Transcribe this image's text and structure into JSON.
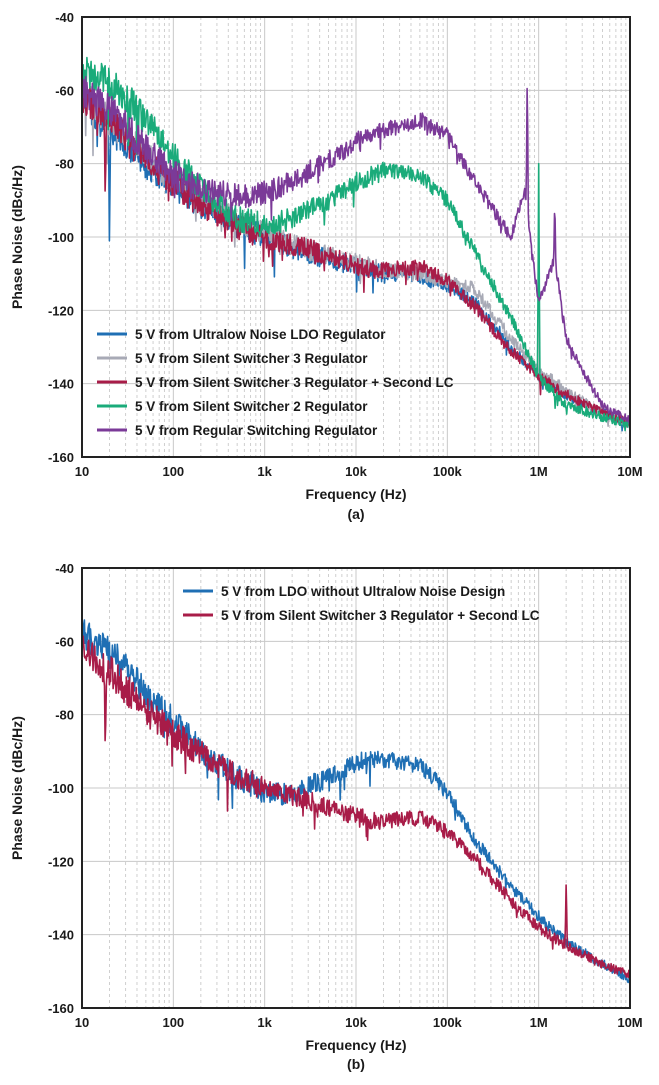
{
  "chart_data": [
    {
      "type": "line",
      "caption": "(a)",
      "xlabel": "Frequency (Hz)",
      "ylabel": "Phase Noise (dBc/Hz)",
      "xscale": "log",
      "xlim": [
        10,
        10000000
      ],
      "ylim": [
        -160,
        -40
      ],
      "xticks": [
        {
          "v": 10,
          "label": "10"
        },
        {
          "v": 100,
          "label": "100"
        },
        {
          "v": 1000,
          "label": "1k"
        },
        {
          "v": 10000,
          "label": "10k"
        },
        {
          "v": 100000,
          "label": "100k"
        },
        {
          "v": 1000000,
          "label": "1M"
        },
        {
          "v": 10000000,
          "label": "10M"
        }
      ],
      "yticks": [
        {
          "v": -40,
          "label": "-40"
        },
        {
          "v": -60,
          "label": "-60"
        },
        {
          "v": -80,
          "label": "-80"
        },
        {
          "v": -100,
          "label": "-100"
        },
        {
          "v": -120,
          "label": "-120"
        },
        {
          "v": -140,
          "label": "-140"
        },
        {
          "v": -160,
          "label": "-160"
        }
      ],
      "grid": true,
      "legend_position": "bottom-left",
      "series": [
        {
          "name": "5 V from Ultralow Noise LDO Regulator",
          "color": "#1f6fb4",
          "x": [
            10,
            20,
            30,
            50,
            100,
            200,
            500,
            1000,
            2000,
            5000,
            10000,
            20000,
            50000,
            100000,
            200000,
            500000,
            1000000,
            2000000,
            5000000,
            10000000
          ],
          "y": [
            -62,
            -70,
            -74,
            -80,
            -86,
            -91,
            -96,
            -100,
            -103,
            -106,
            -108,
            -110,
            -111,
            -113,
            -118,
            -130,
            -138,
            -143,
            -148,
            -151
          ],
          "spikes": [
            {
              "x": 20,
              "y": -104
            }
          ]
        },
        {
          "name": "5 V from Silent Switcher 3 Regulator",
          "color": "#a8aab6",
          "x": [
            10,
            20,
            30,
            50,
            100,
            200,
            500,
            1000,
            2000,
            5000,
            10000,
            20000,
            50000,
            100000,
            200000,
            500000,
            1000000,
            2000000,
            5000000,
            10000000
          ],
          "y": [
            -61,
            -68,
            -72,
            -78,
            -84,
            -90,
            -95,
            -99,
            -102,
            -105,
            -107,
            -109,
            -110,
            -112,
            -114,
            -128,
            -136,
            -142,
            -148,
            -151
          ],
          "spikes": []
        },
        {
          "name": "5 V from Silent Switcher 3 Regulator + Second LC",
          "color": "#a81c48",
          "x": [
            10,
            20,
            30,
            50,
            100,
            200,
            500,
            1000,
            2000,
            5000,
            10000,
            20000,
            50000,
            100000,
            200000,
            500000,
            1000000,
            2000000,
            5000000,
            10000000
          ],
          "y": [
            -62,
            -68,
            -73,
            -79,
            -85,
            -91,
            -97,
            -100,
            -102,
            -105,
            -108,
            -109,
            -108,
            -112,
            -119,
            -131,
            -138,
            -143,
            -148,
            -151
          ],
          "spikes": [
            {
              "x": 18,
              "y": -91
            },
            {
              "x": 3200,
              "y": -100
            }
          ]
        },
        {
          "name": "5 V from Silent Switcher 2 Regulator",
          "color": "#1aab7a",
          "x": [
            10,
            20,
            30,
            50,
            100,
            200,
            500,
            1000,
            2000,
            5000,
            10000,
            20000,
            50000,
            100000,
            200000,
            500000,
            1000000,
            2000000,
            5000000,
            10000000
          ],
          "y": [
            -55,
            -58,
            -62,
            -68,
            -78,
            -87,
            -95,
            -97,
            -95,
            -90,
            -85,
            -82,
            -83,
            -90,
            -104,
            -122,
            -138,
            -146,
            -149,
            -151
          ],
          "spikes": [
            {
              "x": 1000000,
              "y": -80
            }
          ]
        },
        {
          "name": "5 V from Regular Switching Regulator",
          "color": "#7b3a98",
          "x": [
            10,
            20,
            30,
            50,
            100,
            200,
            500,
            1000,
            2000,
            5000,
            10000,
            20000,
            50000,
            100000,
            200000,
            500000,
            700000,
            1000000,
            1500000,
            2000000,
            5000000,
            10000000
          ],
          "y": [
            -60,
            -65,
            -70,
            -76,
            -83,
            -87,
            -89,
            -88,
            -85,
            -79,
            -74,
            -71,
            -68,
            -72,
            -85,
            -100,
            -87,
            -118,
            -106,
            -128,
            -146,
            -150
          ],
          "spikes": [
            {
              "x": 750000,
              "y": -54
            },
            {
              "x": 1500000,
              "y": -90
            }
          ]
        }
      ]
    },
    {
      "type": "line",
      "caption": "(b)",
      "xlabel": "Frequency (Hz)",
      "ylabel": "Phase Noise (dBc/Hz)",
      "xscale": "log",
      "xlim": [
        10,
        10000000
      ],
      "ylim": [
        -160,
        -40
      ],
      "xticks": [
        {
          "v": 10,
          "label": "10"
        },
        {
          "v": 100,
          "label": "100"
        },
        {
          "v": 1000,
          "label": "1k"
        },
        {
          "v": 10000,
          "label": "10k"
        },
        {
          "v": 100000,
          "label": "100k"
        },
        {
          "v": 1000000,
          "label": "1M"
        },
        {
          "v": 10000000,
          "label": "10M"
        }
      ],
      "yticks": [
        {
          "v": -40,
          "label": "-40"
        },
        {
          "v": -60,
          "label": "-60"
        },
        {
          "v": -80,
          "label": "-80"
        },
        {
          "v": -100,
          "label": "-100"
        },
        {
          "v": -120,
          "label": "-120"
        },
        {
          "v": -140,
          "label": "-140"
        },
        {
          "v": -160,
          "label": "-160"
        }
      ],
      "grid": true,
      "legend_position": "top-right",
      "series": [
        {
          "name": "5 V from LDO without Ultralow Noise Design",
          "color": "#1f6fb4",
          "x": [
            10,
            20,
            30,
            50,
            100,
            200,
            500,
            1000,
            2000,
            5000,
            10000,
            20000,
            50000,
            100000,
            200000,
            500000,
            1000000,
            2000000,
            5000000,
            10000000
          ],
          "y": [
            -58,
            -63,
            -67,
            -74,
            -82,
            -90,
            -97,
            -101,
            -102,
            -97,
            -93,
            -92,
            -94,
            -101,
            -114,
            -127,
            -135,
            -142,
            -148,
            -152
          ],
          "spikes": []
        },
        {
          "name": "5 V from Silent Switcher 3 Regulator + Second LC",
          "color": "#a81c48",
          "x": [
            10,
            20,
            30,
            50,
            100,
            200,
            500,
            1000,
            2000,
            5000,
            10000,
            20000,
            50000,
            100000,
            200000,
            500000,
            1000000,
            2000000,
            5000000,
            10000000
          ],
          "y": [
            -62,
            -68,
            -73,
            -79,
            -85,
            -91,
            -97,
            -100,
            -102,
            -105,
            -108,
            -109,
            -108,
            -112,
            -119,
            -131,
            -138,
            -143,
            -148,
            -151
          ],
          "spikes": [
            {
              "x": 18,
              "y": -91
            },
            {
              "x": 2000000,
              "y": -125
            }
          ]
        }
      ]
    }
  ]
}
